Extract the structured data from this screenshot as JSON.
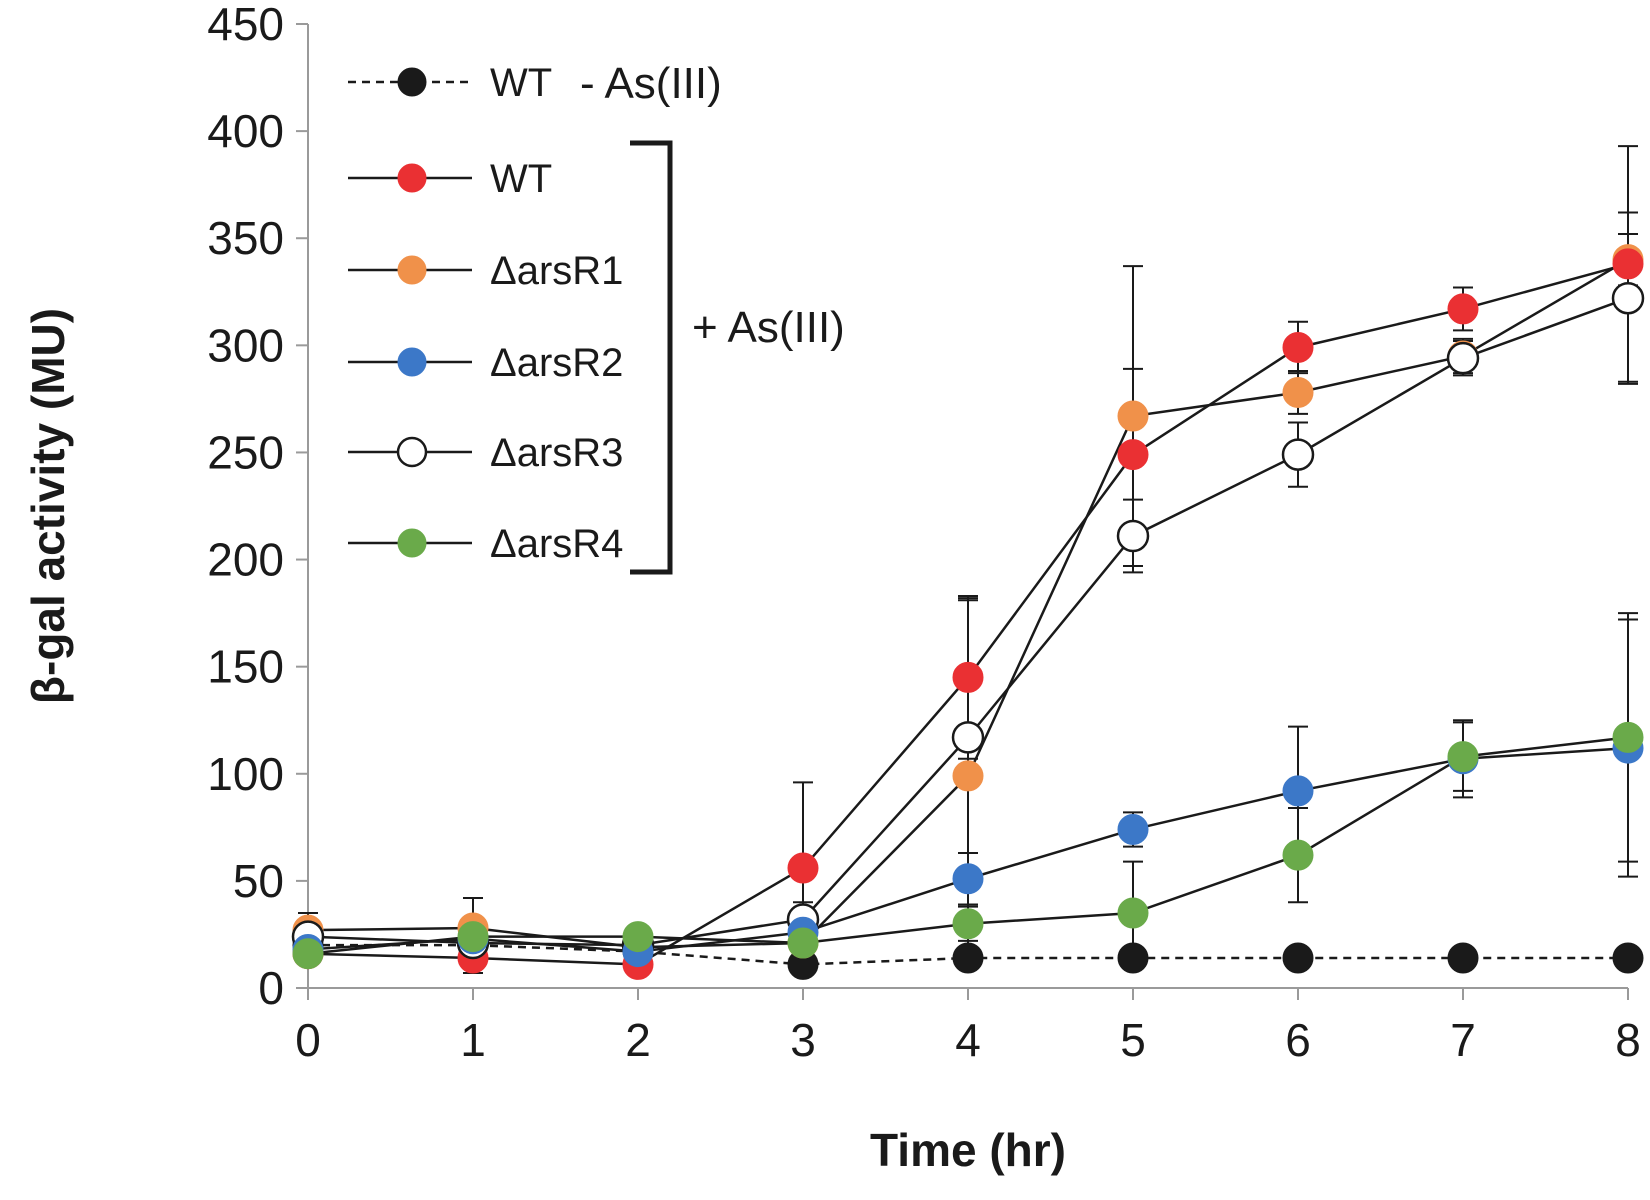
{
  "chart_data": {
    "type": "line",
    "title": "",
    "xlabel": "Time (hr)",
    "ylabel": "β-gal activity (MU)",
    "x": [
      0,
      1,
      2,
      3,
      4,
      5,
      6,
      7,
      8
    ],
    "xlim": [
      0,
      8
    ],
    "ylim": [
      0,
      450
    ],
    "xticks": [
      "0",
      "1",
      "2",
      "3",
      "4",
      "5",
      "6",
      "7",
      "8"
    ],
    "yticks": [
      "0",
      "50",
      "100",
      "150",
      "200",
      "250",
      "300",
      "350",
      "400",
      "450"
    ],
    "grid": false,
    "legend_position": "top-left",
    "legend_groups": [
      {
        "label": "- As(III)",
        "series": [
          "WT_minus"
        ]
      },
      {
        "label": "+ As(III)",
        "series": [
          "WT_plus",
          "dR1",
          "dR2",
          "dR3",
          "dR4"
        ]
      }
    ],
    "series": [
      {
        "id": "WT_minus",
        "name": "WT",
        "color": "#1a1a1a",
        "hollow": false,
        "line_style": "dashed",
        "values": [
          20,
          20,
          17,
          11,
          14,
          14,
          14,
          14,
          14
        ],
        "errors": [
          0,
          0,
          0,
          0,
          0,
          0,
          0,
          0,
          0
        ]
      },
      {
        "id": "dR1",
        "name": "ΔarsR1",
        "color": "#f0914a",
        "hollow": false,
        "line_style": "solid",
        "values": [
          27,
          28,
          19,
          21,
          99,
          267,
          278,
          295,
          340
        ],
        "errors": [
          8,
          14,
          4,
          5,
          82,
          70,
          10,
          8,
          12
        ]
      },
      {
        "id": "WT_plus",
        "name": "WT",
        "color": "#ea3033",
        "hollow": false,
        "line_style": "solid",
        "values": [
          16,
          14,
          11,
          56,
          145,
          249,
          299,
          317,
          338
        ],
        "errors": [
          5,
          7,
          4,
          40,
          38,
          40,
          12,
          10,
          55
        ]
      },
      {
        "id": "dR3",
        "name": "ΔarsR3",
        "color": "#ffffff",
        "hollow": true,
        "line_style": "solid",
        "values": [
          24,
          21,
          20,
          32,
          117,
          211,
          249,
          294,
          322
        ],
        "errors": [
          6,
          6,
          5,
          8,
          65,
          17,
          15,
          8,
          40
        ]
      },
      {
        "id": "dR2",
        "name": "ΔarsR2",
        "color": "#3c78c8",
        "hollow": false,
        "line_style": "solid",
        "values": [
          18,
          23,
          17,
          26,
          51,
          74,
          92,
          107,
          112
        ],
        "errors": [
          5,
          5,
          4,
          6,
          12,
          8,
          30,
          18,
          60
        ]
      },
      {
        "id": "dR4",
        "name": "ΔarsR4",
        "color": "#6aaa4a",
        "hollow": false,
        "line_style": "solid",
        "values": [
          16,
          24,
          24,
          21,
          30,
          35,
          62,
          108,
          117
        ],
        "errors": [
          4,
          5,
          4,
          4,
          8,
          24,
          22,
          16,
          58
        ]
      }
    ]
  }
}
